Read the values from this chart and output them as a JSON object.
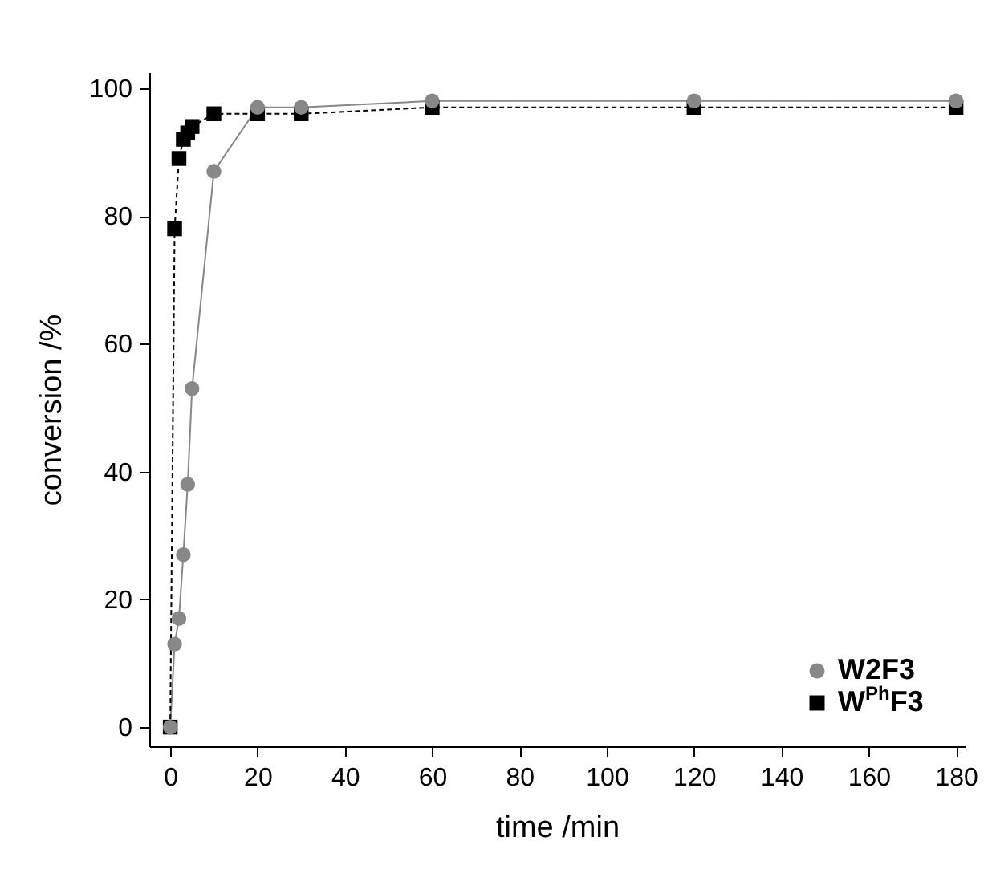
{
  "chart_data": {
    "type": "line",
    "xlabel": "time /min",
    "ylabel": "conversion /%",
    "x": [
      0,
      1,
      2,
      3,
      4,
      5,
      10,
      20,
      30,
      60,
      120,
      180
    ],
    "series": [
      {
        "name": "W2F3",
        "color": "#888888",
        "marker": "circle",
        "line_style": "solid",
        "values": [
          0,
          13,
          17,
          27,
          38,
          53,
          87,
          97,
          97,
          98,
          98,
          98
        ]
      },
      {
        "name": "W$^{Ph}$F3",
        "color": "#000000",
        "marker": "square",
        "line_style": "dashed",
        "values": [
          0,
          78,
          89,
          92,
          93,
          94,
          96,
          96,
          96,
          97,
          97,
          97
        ]
      }
    ],
    "xlim": [
      -4.8,
      182
    ],
    "ylim": [
      -3,
      102.5
    ],
    "xticks": [
      0,
      20,
      40,
      60,
      80,
      100,
      120,
      140,
      160,
      180
    ],
    "yticks": [
      0,
      20,
      40,
      60,
      80,
      100
    ],
    "grid": false,
    "legend": "bottom right"
  }
}
